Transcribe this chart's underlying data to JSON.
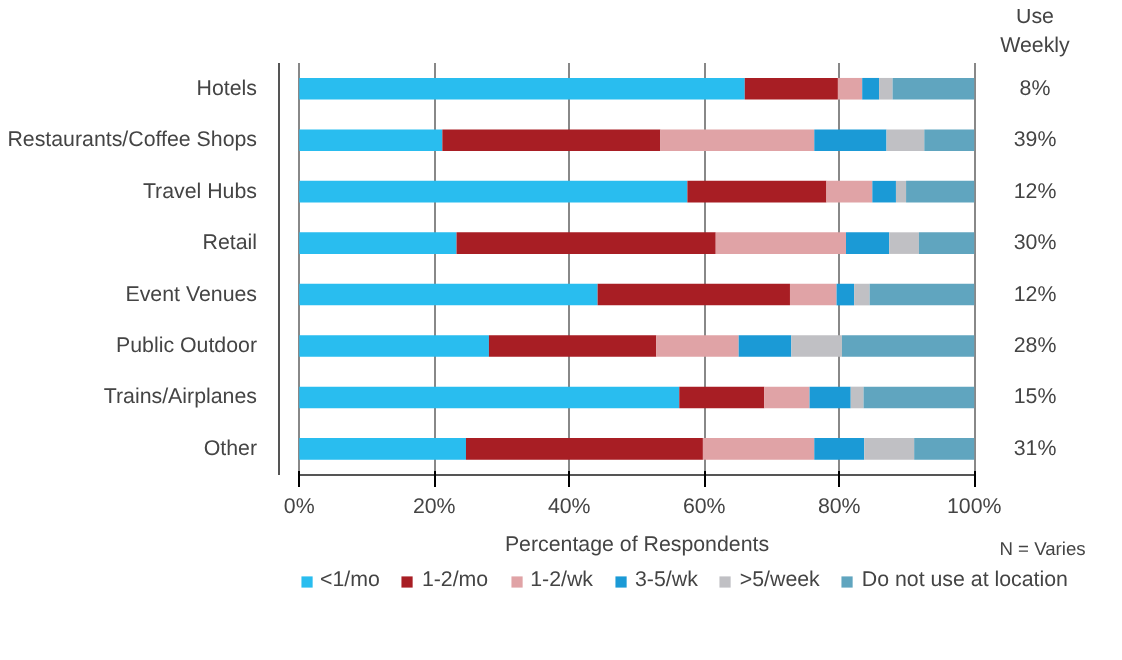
{
  "chart_data": {
    "type": "bar",
    "orientation": "horizontal",
    "stacked": true,
    "categories": [
      "Hotels",
      "Restaurants/Coffee Shops",
      "Travel Hubs",
      "Retail",
      "Event Venues",
      "Public Outdoor",
      "Trains/Airplanes",
      "Other"
    ],
    "series": [
      {
        "name": "<1/mo",
        "color": "#29bdef",
        "values": [
          66.0,
          21.2,
          57.5,
          23.3,
          44.2,
          28.1,
          56.3,
          24.7
        ]
      },
      {
        "name": "1-2/mo",
        "color": "#a81e24",
        "values": [
          13.8,
          32.3,
          20.6,
          38.4,
          28.5,
          24.8,
          12.6,
          35.1
        ]
      },
      {
        "name": "1-2/wk",
        "color": "#e0a3a6",
        "values": [
          3.6,
          22.8,
          6.8,
          19.3,
          6.9,
          12.2,
          6.7,
          16.5
        ]
      },
      {
        "name": "3-5/wk",
        "color": "#1b9ad6",
        "values": [
          2.5,
          10.7,
          3.5,
          6.4,
          2.6,
          7.8,
          6.1,
          7.4
        ]
      },
      {
        "name": ">5/week",
        "color": "#c0c0c4",
        "values": [
          2.0,
          5.6,
          1.5,
          4.4,
          2.3,
          7.5,
          1.9,
          7.4
        ]
      },
      {
        "name": "Do not use at location",
        "color": "#60a5bf",
        "values": [
          12.1,
          7.4,
          10.1,
          8.2,
          15.5,
          19.6,
          16.4,
          8.9
        ]
      }
    ],
    "xlabel": "Percentage of Respondents",
    "xlim": [
      0,
      100
    ],
    "xticks": [
      {
        "value": 0,
        "label": "0%"
      },
      {
        "value": 20,
        "label": "20%"
      },
      {
        "value": 40,
        "label": "40%"
      },
      {
        "value": 60,
        "label": "60%"
      },
      {
        "value": 80,
        "label": "80%"
      },
      {
        "value": 100,
        "label": "100%"
      }
    ],
    "grid": "x",
    "legend": "bottom",
    "annotations": [
      "Use Weekly",
      "8%",
      "39%",
      "12%",
      "30%",
      "12%",
      "28%",
      "15%",
      "31%",
      "N = Varies"
    ]
  }
}
